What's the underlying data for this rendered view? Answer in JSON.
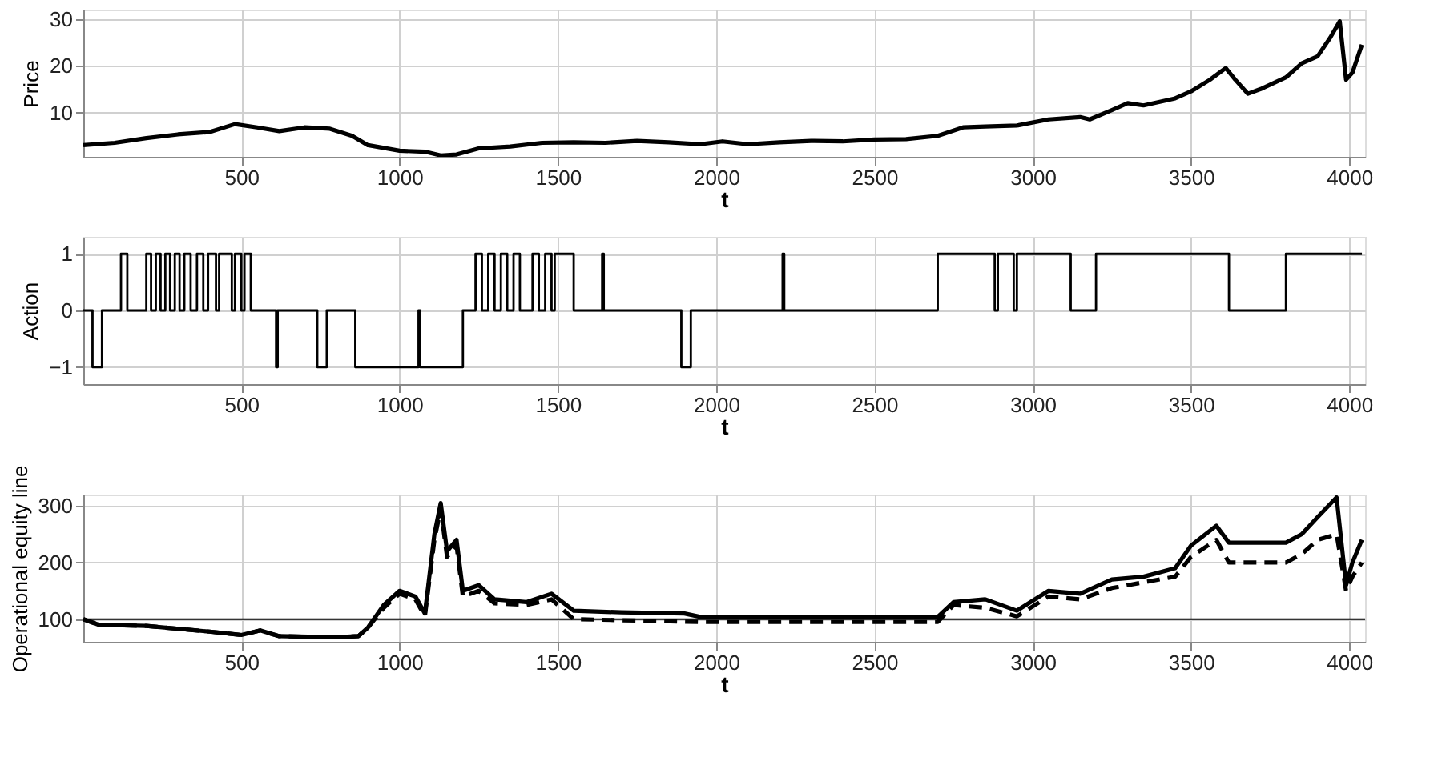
{
  "chart_data": [
    {
      "type": "line",
      "xlabel": "t",
      "ylabel": "Price",
      "xlim": [
        1,
        4050
      ],
      "xticks": [
        500,
        1000,
        1500,
        2000,
        2500,
        3000,
        3500,
        4000
      ],
      "ylim": [
        0.5,
        32
      ],
      "yticks": [
        10,
        20,
        30
      ],
      "grid": true,
      "series": [
        {
          "color": "#000000",
          "x": [
            1,
            100,
            200,
            300,
            400,
            480,
            550,
            620,
            700,
            780,
            850,
            900,
            1000,
            1080,
            1130,
            1180,
            1250,
            1350,
            1450,
            1550,
            1650,
            1750,
            1850,
            1950,
            2020,
            2100,
            2200,
            2300,
            2400,
            2500,
            2600,
            2700,
            2780,
            2850,
            2950,
            3050,
            3150,
            3180,
            3250,
            3300,
            3350,
            3450,
            3500,
            3560,
            3610,
            3640,
            3680,
            3720,
            3800,
            3850,
            3900,
            3940,
            3970,
            3990,
            4010,
            4040
          ],
          "values": [
            3,
            3.5,
            4.5,
            5.3,
            5.8,
            7.5,
            6.8,
            6,
            6.8,
            6.5,
            5,
            3,
            1.8,
            1.6,
            0.8,
            1,
            2.3,
            2.7,
            3.5,
            3.6,
            3.5,
            3.9,
            3.6,
            3.2,
            3.8,
            3.2,
            3.6,
            3.9,
            3.8,
            4.2,
            4.3,
            5,
            6.8,
            7,
            7.2,
            8.5,
            9,
            8.5,
            10.5,
            12,
            11.5,
            13,
            14.5,
            17,
            19.5,
            17,
            14,
            15,
            17.5,
            20.5,
            22,
            26,
            29.5,
            17,
            18.5,
            24.5
          ]
        }
      ]
    },
    {
      "type": "step",
      "xlabel": "t",
      "ylabel": "Action",
      "xlim": [
        1,
        4050
      ],
      "xticks": [
        500,
        1000,
        1500,
        2000,
        2500,
        3000,
        3500,
        4000
      ],
      "ylim": [
        -1.3,
        1.3
      ],
      "yticks": [
        -1,
        0,
        1
      ],
      "grid": true,
      "series": [
        {
          "color": "#000000",
          "x": [
            1,
            30,
            60,
            120,
            140,
            200,
            215,
            230,
            245,
            260,
            275,
            290,
            305,
            320,
            340,
            360,
            380,
            395,
            420,
            430,
            470,
            480,
            500,
            510,
            530,
            610,
            615,
            740,
            770,
            860,
            1060,
            1065,
            1200,
            1240,
            1260,
            1280,
            1300,
            1320,
            1340,
            1360,
            1380,
            1420,
            1440,
            1460,
            1480,
            1490,
            1550,
            1640,
            1645,
            1890,
            1920,
            2210,
            2215,
            2700,
            2880,
            2890,
            2940,
            2950,
            3120,
            3200,
            3620,
            3800,
            4040
          ],
          "values": [
            0,
            -1,
            0,
            1,
            0,
            1,
            0,
            1,
            0,
            1,
            0,
            1,
            0,
            1,
            0,
            1,
            0,
            1,
            0,
            1,
            0,
            1,
            0,
            1,
            0,
            -1,
            0,
            -1,
            0,
            -1,
            0,
            -1,
            0,
            1,
            0,
            1,
            0,
            1,
            0,
            1,
            0,
            1,
            0,
            1,
            0,
            1,
            0,
            1,
            0,
            -1,
            0,
            1,
            0,
            1,
            0,
            1,
            0,
            1,
            0,
            1,
            0,
            1,
            1
          ]
        }
      ]
    },
    {
      "type": "line",
      "xlabel": "t",
      "ylabel": "Operational equity line",
      "xlim": [
        1,
        4050
      ],
      "xticks": [
        500,
        1000,
        1500,
        2000,
        2500,
        3000,
        3500,
        4000
      ],
      "ylim": [
        60,
        320
      ],
      "yticks": [
        100,
        200,
        300
      ],
      "grid": true,
      "ref_lines": [
        {
          "axis": "y",
          "value": 100,
          "color": "#000000",
          "line_style": "solid"
        }
      ],
      "series": [
        {
          "color": "#000000",
          "line_style": "solid",
          "x": [
            1,
            50,
            200,
            400,
            500,
            560,
            620,
            800,
            870,
            900,
            950,
            1000,
            1050,
            1080,
            1110,
            1130,
            1150,
            1180,
            1200,
            1250,
            1300,
            1400,
            1480,
            1550,
            1700,
            1900,
            1950,
            2700,
            2750,
            2850,
            2950,
            3050,
            3150,
            3250,
            3350,
            3450,
            3500,
            3580,
            3620,
            3800,
            3850,
            3900,
            3960,
            3990,
            4010,
            4040
          ],
          "values": [
            100,
            90,
            88,
            78,
            72,
            80,
            70,
            68,
            70,
            85,
            125,
            150,
            140,
            110,
            250,
            305,
            220,
            240,
            150,
            160,
            135,
            130,
            145,
            115,
            112,
            110,
            104,
            104,
            130,
            135,
            115,
            150,
            145,
            170,
            175,
            190,
            230,
            265,
            235,
            235,
            250,
            280,
            315,
            160,
            200,
            240
          ]
        },
        {
          "color": "#000000",
          "line_style": "dashed",
          "x": [
            1,
            50,
            200,
            400,
            500,
            560,
            620,
            800,
            870,
            900,
            950,
            1000,
            1050,
            1080,
            1110,
            1130,
            1150,
            1180,
            1200,
            1250,
            1300,
            1400,
            1480,
            1550,
            1950,
            2700,
            2750,
            2850,
            2950,
            3050,
            3150,
            3250,
            3350,
            3450,
            3500,
            3580,
            3620,
            3800,
            3850,
            3900,
            3960,
            3990,
            4010,
            4040
          ],
          "values": [
            100,
            90,
            88,
            78,
            72,
            80,
            70,
            68,
            70,
            85,
            120,
            145,
            135,
            105,
            240,
            295,
            210,
            230,
            140,
            150,
            128,
            125,
            135,
            100,
            95,
            95,
            125,
            120,
            105,
            140,
            135,
            155,
            165,
            175,
            210,
            240,
            200,
            200,
            215,
            240,
            250,
            150,
            175,
            200
          ]
        }
      ]
    }
  ]
}
